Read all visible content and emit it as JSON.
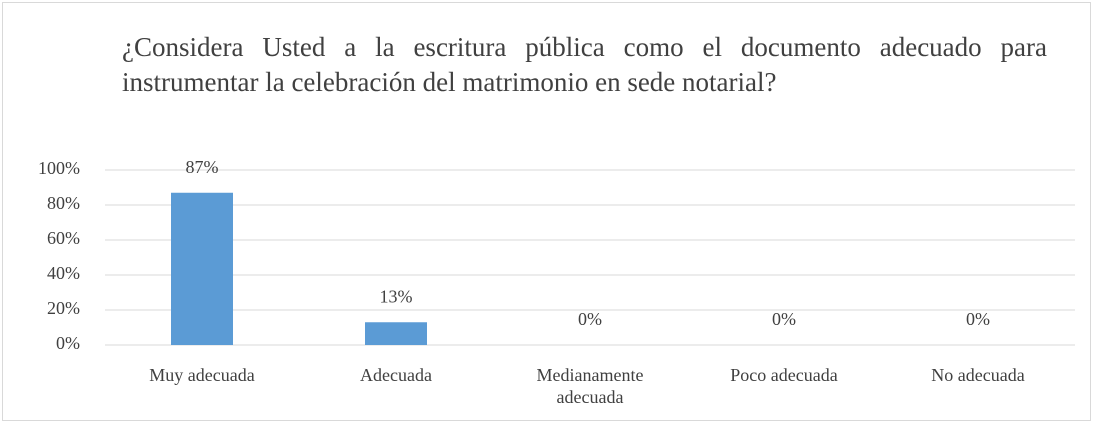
{
  "chart_data": {
    "type": "bar",
    "title": "¿Considera Usted a la escritura pública como el documento adecuado para instrumentar la celebración del matrimonio en sede notarial?",
    "categories": [
      "Muy adecuada",
      "Adecuada",
      "Medianamente adecuada",
      "Poco adecuada",
      "No adecuada"
    ],
    "values": [
      87,
      13,
      0,
      0,
      0
    ],
    "value_labels": [
      "87%",
      "13%",
      "0%",
      "0%",
      "0%"
    ],
    "color": "#5b9bd5",
    "ylim": [
      0,
      100
    ],
    "yticks": [
      {
        "value": 0,
        "label": "0%"
      },
      {
        "value": 20,
        "label": "20%"
      },
      {
        "value": 40,
        "label": "40%"
      },
      {
        "value": 60,
        "label": "60%"
      },
      {
        "value": 80,
        "label": "80%"
      },
      {
        "value": 100,
        "label": "100%"
      }
    ],
    "grid": true
  }
}
